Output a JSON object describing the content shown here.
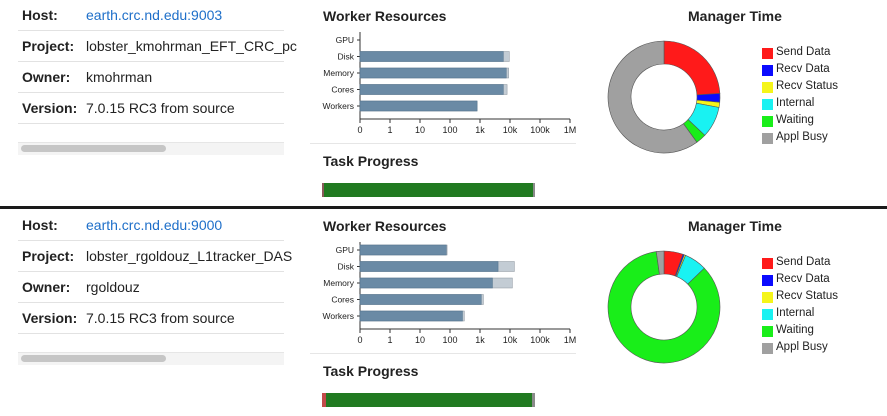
{
  "panels": [
    {
      "info": [
        {
          "key": "Host:",
          "value": "earth.crc.nd.edu:9003",
          "link": true
        },
        {
          "key": "Project:",
          "value": "lobster_kmohrman_EFT_CRC_pc",
          "link": false
        },
        {
          "key": "Owner:",
          "value": "kmohrman",
          "link": false
        },
        {
          "key": "Version:",
          "value": "7.0.15 RC3 from source",
          "link": false
        }
      ],
      "worker_resources": {
        "title": "Worker Resources",
        "chart_data": {
          "type": "bar",
          "orientation": "horizontal",
          "scale": "log",
          "categories": [
            "GPU",
            "Disk",
            "Memory",
            "Cores",
            "Workers"
          ],
          "ticks": [
            "0",
            "1",
            "10",
            "100",
            "1k",
            "10k",
            "100k",
            "1M"
          ],
          "series": [
            {
              "values": [
                0,
                6000,
                7500,
                6000,
                800
              ]
            },
            {
              "values": [
                0,
                9500,
                9000,
                8000,
                800
              ]
            }
          ]
        }
      },
      "task_progress": {
        "title": "Task Progress",
        "segments": [
          {
            "fraction": 0.01,
            "color": "#8a5a5a"
          },
          {
            "fraction": 0.98,
            "color": "#217a21"
          },
          {
            "fraction": 0.01,
            "color": "#8a8a8a"
          }
        ]
      },
      "manager_time": {
        "title": "Manager Time",
        "chart_data": {
          "type": "pie",
          "donut": true,
          "slices": [
            {
              "label": "Send Data",
              "value": 0.24,
              "color": "#ff1a1a"
            },
            {
              "label": "Recv Data",
              "value": 0.025,
              "color": "#0a0aff"
            },
            {
              "label": "Recv Status",
              "value": 0.015,
              "color": "#f5f51a"
            },
            {
              "label": "Internal",
              "value": 0.09,
              "color": "#19f2f2"
            },
            {
              "label": "Waiting",
              "value": 0.03,
              "color": "#19ee19"
            },
            {
              "label": "Appl Busy",
              "value": 0.6,
              "color": "#a0a0a0"
            }
          ]
        }
      }
    },
    {
      "info": [
        {
          "key": "Host:",
          "value": "earth.crc.nd.edu:9000",
          "link": true
        },
        {
          "key": "Project:",
          "value": "lobster_rgoldouz_L1tracker_DAS",
          "link": false
        },
        {
          "key": "Owner:",
          "value": "rgoldouz",
          "link": false
        },
        {
          "key": "Version:",
          "value": "7.0.15 RC3 from source",
          "link": false
        }
      ],
      "worker_resources": {
        "title": "Worker Resources",
        "chart_data": {
          "type": "bar",
          "orientation": "horizontal",
          "scale": "log",
          "categories": [
            "GPU",
            "Disk",
            "Memory",
            "Cores",
            "Workers"
          ],
          "ticks": [
            "0",
            "1",
            "10",
            "100",
            "1k",
            "10k",
            "100k",
            "1M"
          ],
          "series": [
            {
              "values": [
                75,
                4000,
                2600,
                1100,
                260
              ]
            },
            {
              "values": [
                80,
                14000,
                12000,
                1300,
                300
              ]
            }
          ]
        }
      },
      "task_progress": {
        "title": "Task Progress",
        "segments": [
          {
            "fraction": 0.02,
            "color": "#c24a4a"
          },
          {
            "fraction": 0.965,
            "color": "#217a21"
          },
          {
            "fraction": 0.015,
            "color": "#8a8a8a"
          }
        ]
      },
      "manager_time": {
        "title": "Manager Time",
        "chart_data": {
          "type": "pie",
          "donut": true,
          "slices": [
            {
              "label": "Send Data",
              "value": 0.055,
              "color": "#ff1a1a"
            },
            {
              "label": "Recv Data",
              "value": 0.004,
              "color": "#0a0aff"
            },
            {
              "label": "Recv Status",
              "value": 0.004,
              "color": "#f5f51a"
            },
            {
              "label": "Internal",
              "value": 0.065,
              "color": "#19f2f2"
            },
            {
              "label": "Waiting",
              "value": 0.85,
              "color": "#19ee19"
            },
            {
              "label": "Appl Busy",
              "value": 0.022,
              "color": "#a0a0a0"
            }
          ]
        }
      }
    }
  ]
}
